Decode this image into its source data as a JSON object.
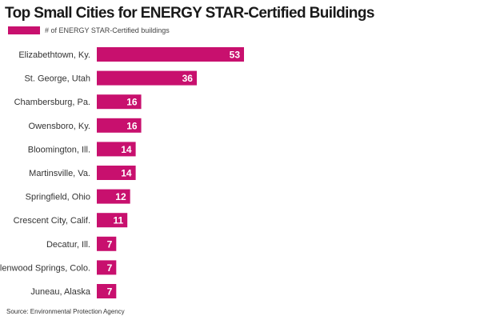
{
  "chart_data": {
    "type": "bar",
    "orientation": "horizontal",
    "title": "Top Small Cities for ENERGY STAR-Certified Buildings",
    "legend": {
      "label": "# of ENERGY STAR-Certified buildings",
      "placement": "top-left"
    },
    "categories": [
      "Elizabethtown, Ky.",
      "St. George, Utah",
      "Chambersburg, Pa.",
      "Owensboro, Ky.",
      "Bloomington, Ill.",
      "Martinsville, Va.",
      "Springfield, Ohio",
      "Crescent City, Calif.",
      "Decatur, Ill.",
      "Glenwood Springs, Colo.",
      "Juneau, Alaska"
    ],
    "series": [
      {
        "name": "# of ENERGY STAR-Certified buildings",
        "values": [
          53,
          36,
          16,
          16,
          14,
          14,
          12,
          11,
          7,
          7,
          7
        ]
      }
    ],
    "xlim": [
      0,
      53
    ],
    "grid": false,
    "data_labels": true,
    "colors": {
      "bar": "#c8106e",
      "label_text": "#ffffff",
      "category_text": "#333333"
    },
    "source": "Source: Environmental Protection Agency"
  }
}
